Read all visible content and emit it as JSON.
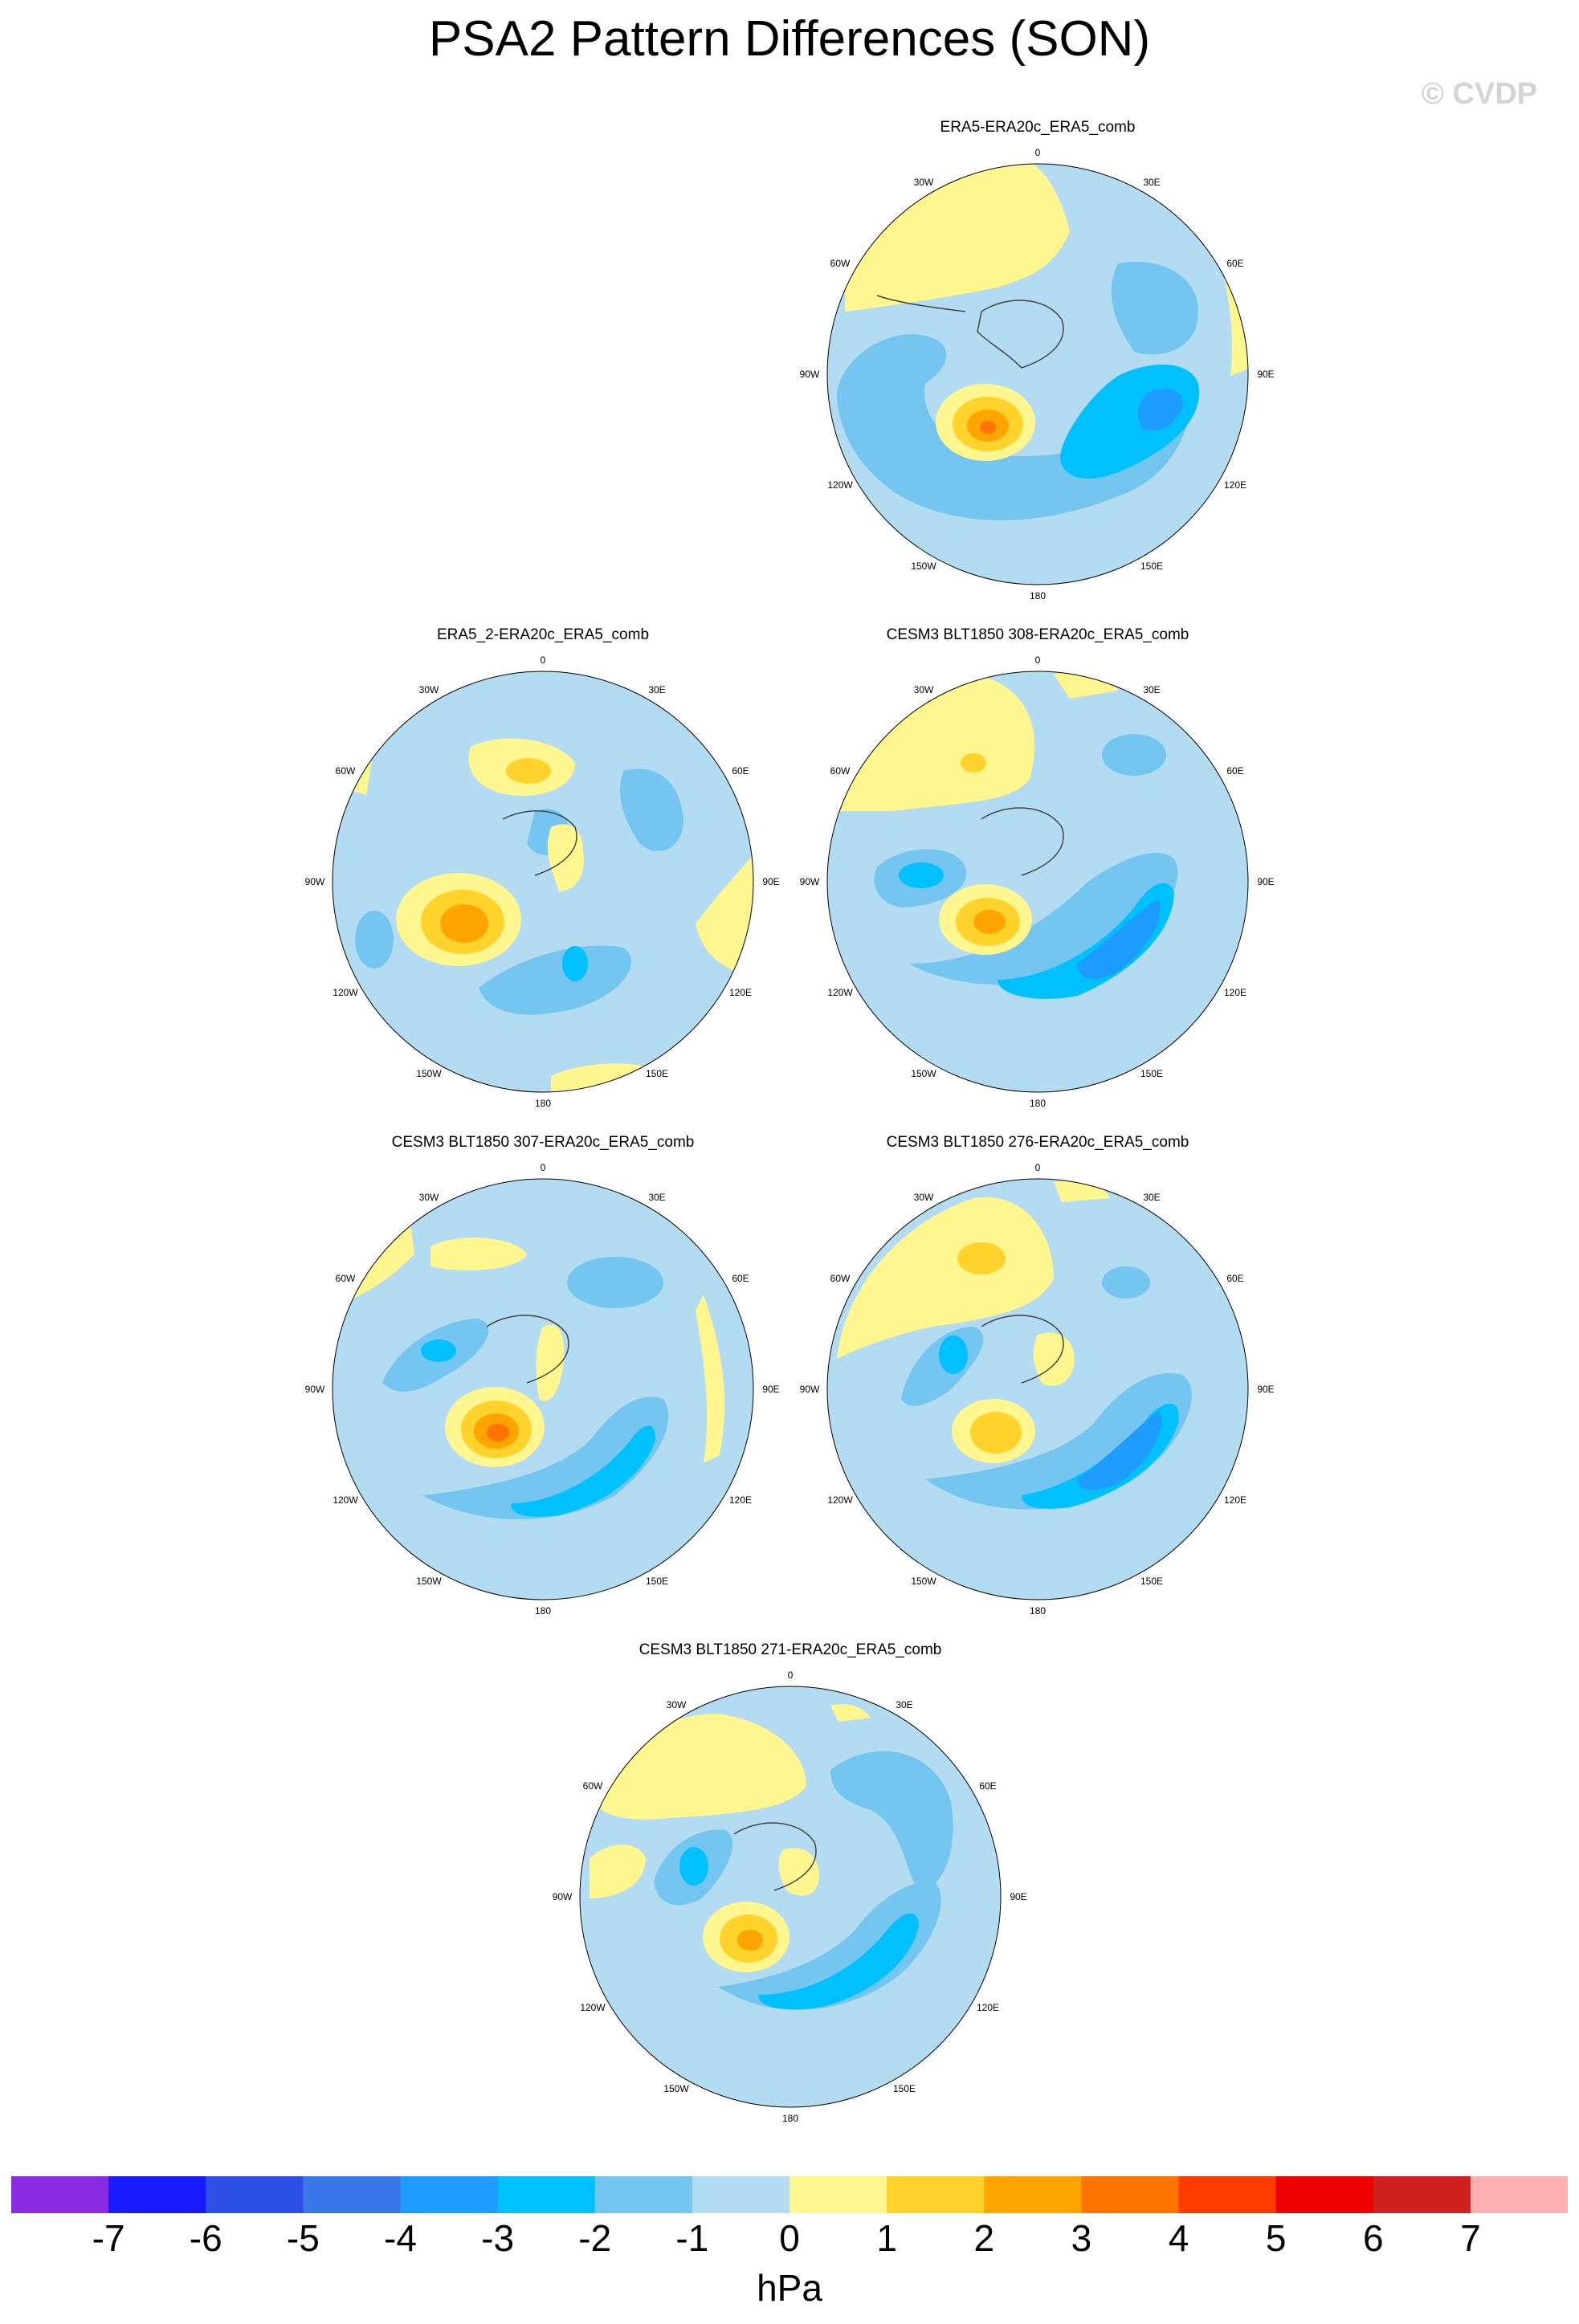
{
  "title": "PSA2 Pattern Differences (SON)",
  "watermark": "© CVDP",
  "lon_labels": [
    "0",
    "30E",
    "60E",
    "90E",
    "120E",
    "150E",
    "180",
    "150W",
    "120W",
    "90W",
    "60W",
    "30W"
  ],
  "panels": [
    {
      "title": "ERA5-ERA20c_ERA5_comb"
    },
    {
      "title": "ERA5_2-ERA20c_ERA5_comb"
    },
    {
      "title": "CESM3 BLT1850 308-ERA20c_ERA5_comb"
    },
    {
      "title": "CESM3 BLT1850 307-ERA20c_ERA5_comb"
    },
    {
      "title": "CESM3 BLT1850 276-ERA20c_ERA5_comb"
    },
    {
      "title": "CESM3 BLT1850 271-ERA20c_ERA5_comb"
    }
  ],
  "colorbar": {
    "units": "hPa",
    "tick_labels": [
      "-7",
      "-6",
      "-5",
      "-4",
      "-3",
      "-2",
      "-1",
      "0",
      "1",
      "2",
      "3",
      "4",
      "5",
      "6",
      "7"
    ],
    "colors": [
      "#8a2be2",
      "#1a1aff",
      "#2e4fe6",
      "#3a78e8",
      "#1e9bff",
      "#00c0ff",
      "#74c6f0",
      "#b3dcf2",
      "#fff68f",
      "#ffd22c",
      "#ffa400",
      "#ff7400",
      "#ff3c00",
      "#ed0000",
      "#d01f1f",
      "#ffb0b0"
    ]
  }
}
